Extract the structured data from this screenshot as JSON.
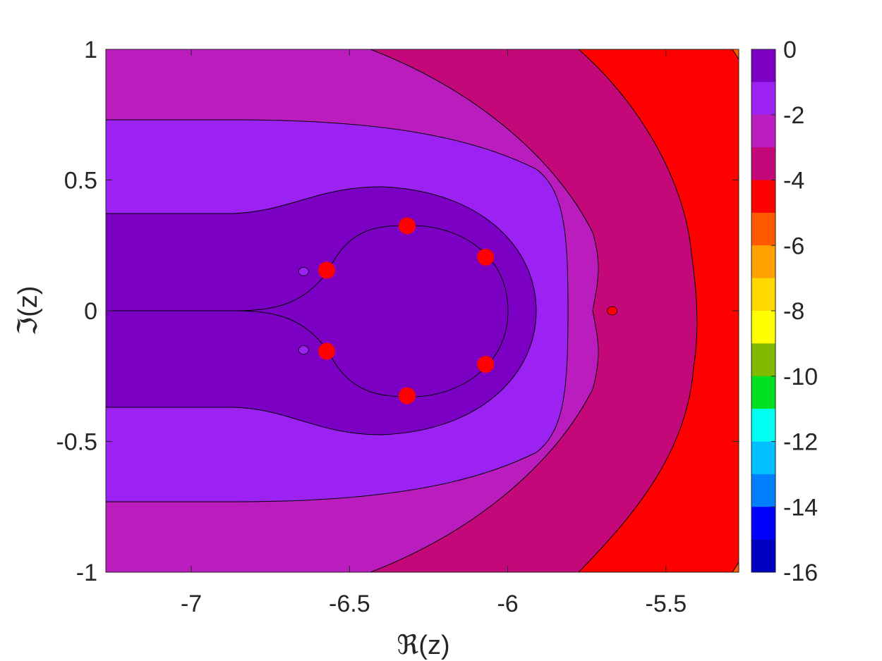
{
  "chart_data": {
    "type": "contour",
    "xlabel": "ℜ(z)",
    "ylabel": "ℑ(z)",
    "xlim": [
      -7.27,
      -5.27
    ],
    "ylim": [
      -1,
      1
    ],
    "x_ticks": [
      -7,
      -6.5,
      -6,
      -5.5
    ],
    "x_tick_labels": [
      "-7",
      "-6.5",
      "-6",
      "-5.5"
    ],
    "y_ticks": [
      1,
      0.5,
      0,
      -0.5,
      -1
    ],
    "y_tick_labels": [
      "1",
      "0.5",
      "0",
      "-0.5",
      "-1"
    ],
    "colorbar": {
      "min": -16,
      "max": 0,
      "ticks": [
        0,
        -2,
        -4,
        -6,
        -8,
        -10,
        -12,
        -14,
        -16
      ],
      "tick_labels": [
        "0",
        "-2",
        "-4",
        "-6",
        "-8",
        "-10",
        "-12",
        "-14",
        "-16"
      ],
      "levels_from_top": [
        "#7B00C4",
        "#9B22F2",
        "#BB1CBE",
        "#C4087A",
        "#FF0000",
        "#FF5A00",
        "#FFA000",
        "#FFD800",
        "#FFFF00",
        "#80BB00",
        "#00E020",
        "#00FFF0",
        "#00C0FF",
        "#0080FF",
        "#0000FF",
        "#0000C0"
      ]
    },
    "regions": [
      {
        "level": "-3 to -4",
        "color": "#C4087A"
      },
      {
        "level": "-4 to -5",
        "color": "#FF0000"
      },
      {
        "level": "-5 to -6",
        "color": "#FF5A00"
      },
      {
        "level": "-2 to -3",
        "color": "#BB1CBE"
      },
      {
        "level": "-1 to -2",
        "color": "#9B22F2"
      },
      {
        "level": "0 to -1",
        "color": "#7B00C4"
      }
    ],
    "points": [
      {
        "x": -6.318,
        "y": 0.325
      },
      {
        "x": -6.07,
        "y": 0.205
      },
      {
        "x": -6.572,
        "y": 0.155
      },
      {
        "x": -6.572,
        "y": -0.155
      },
      {
        "x": -6.07,
        "y": -0.205
      },
      {
        "x": -6.318,
        "y": -0.325
      }
    ],
    "point_color": "#FF0000",
    "small_markers": [
      {
        "x": -6.645,
        "y": 0.15,
        "color": "#9B22F2"
      },
      {
        "x": -6.645,
        "y": -0.15,
        "color": "#9B22F2"
      },
      {
        "x": -5.67,
        "y": 0.0,
        "color": "#FF0000"
      }
    ]
  }
}
